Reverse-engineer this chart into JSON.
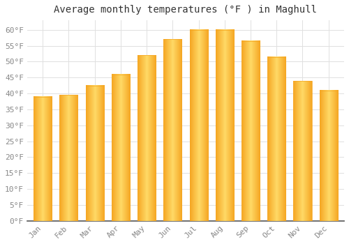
{
  "title": "Average monthly temperatures (°F ) in Maghull",
  "months": [
    "Jan",
    "Feb",
    "Mar",
    "Apr",
    "May",
    "Jun",
    "Jul",
    "Aug",
    "Sep",
    "Oct",
    "Nov",
    "Dec"
  ],
  "values": [
    39,
    39.5,
    42.5,
    46,
    52,
    57,
    60,
    60,
    56.5,
    51.5,
    44,
    41
  ],
  "bar_color_center": "#FFD966",
  "bar_color_edge": "#F5A623",
  "ylim": [
    0,
    63
  ],
  "yticks": [
    0,
    5,
    10,
    15,
    20,
    25,
    30,
    35,
    40,
    45,
    50,
    55,
    60
  ],
  "ytick_labels": [
    "0°F",
    "5°F",
    "10°F",
    "15°F",
    "20°F",
    "25°F",
    "30°F",
    "35°F",
    "40°F",
    "45°F",
    "50°F",
    "55°F",
    "60°F"
  ],
  "background_color": "#FFFFFF",
  "grid_color": "#E0E0E0",
  "title_fontsize": 10,
  "tick_fontsize": 8,
  "bar_width": 0.7,
  "spine_color": "#555555"
}
